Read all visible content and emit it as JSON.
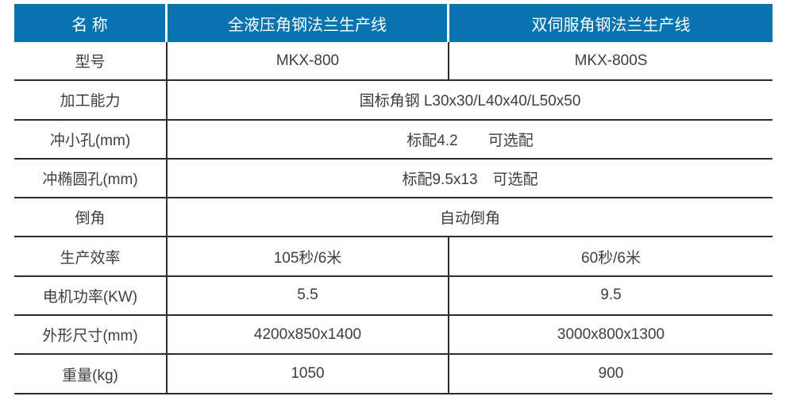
{
  "accent_color": "#0873ae",
  "border_color": "#2d2d2d",
  "table": {
    "header": {
      "col1": "名 称",
      "col2": "全液压角钢法兰生产线",
      "col3": "双伺服角钢法兰生产线"
    },
    "rows": [
      {
        "label": "型号",
        "col2": "MKX-800",
        "col3": "MKX-800S"
      },
      {
        "label": "加工能力",
        "value": "国标角钢 L30x30/L40x40/L50x50"
      },
      {
        "label": "冲小孔(mm)",
        "value": "标配4.2　　可选配"
      },
      {
        "label": "冲椭圆孔(mm)",
        "value": "标配9.5x13　可选配"
      },
      {
        "label": "倒角",
        "value": "自动倒角"
      },
      {
        "label": "生产效率",
        "col2": "105秒/6米",
        "col3": "60秒/6米"
      },
      {
        "label": "电机功率(KW)",
        "col2": "5.5",
        "col3": "9.5"
      },
      {
        "label": "外形尺寸(mm)",
        "col2": "4200x850x1400",
        "col3": "3000x800x1300"
      },
      {
        "label": "重量(kg)",
        "col2": "1050",
        "col3": "900"
      }
    ]
  }
}
